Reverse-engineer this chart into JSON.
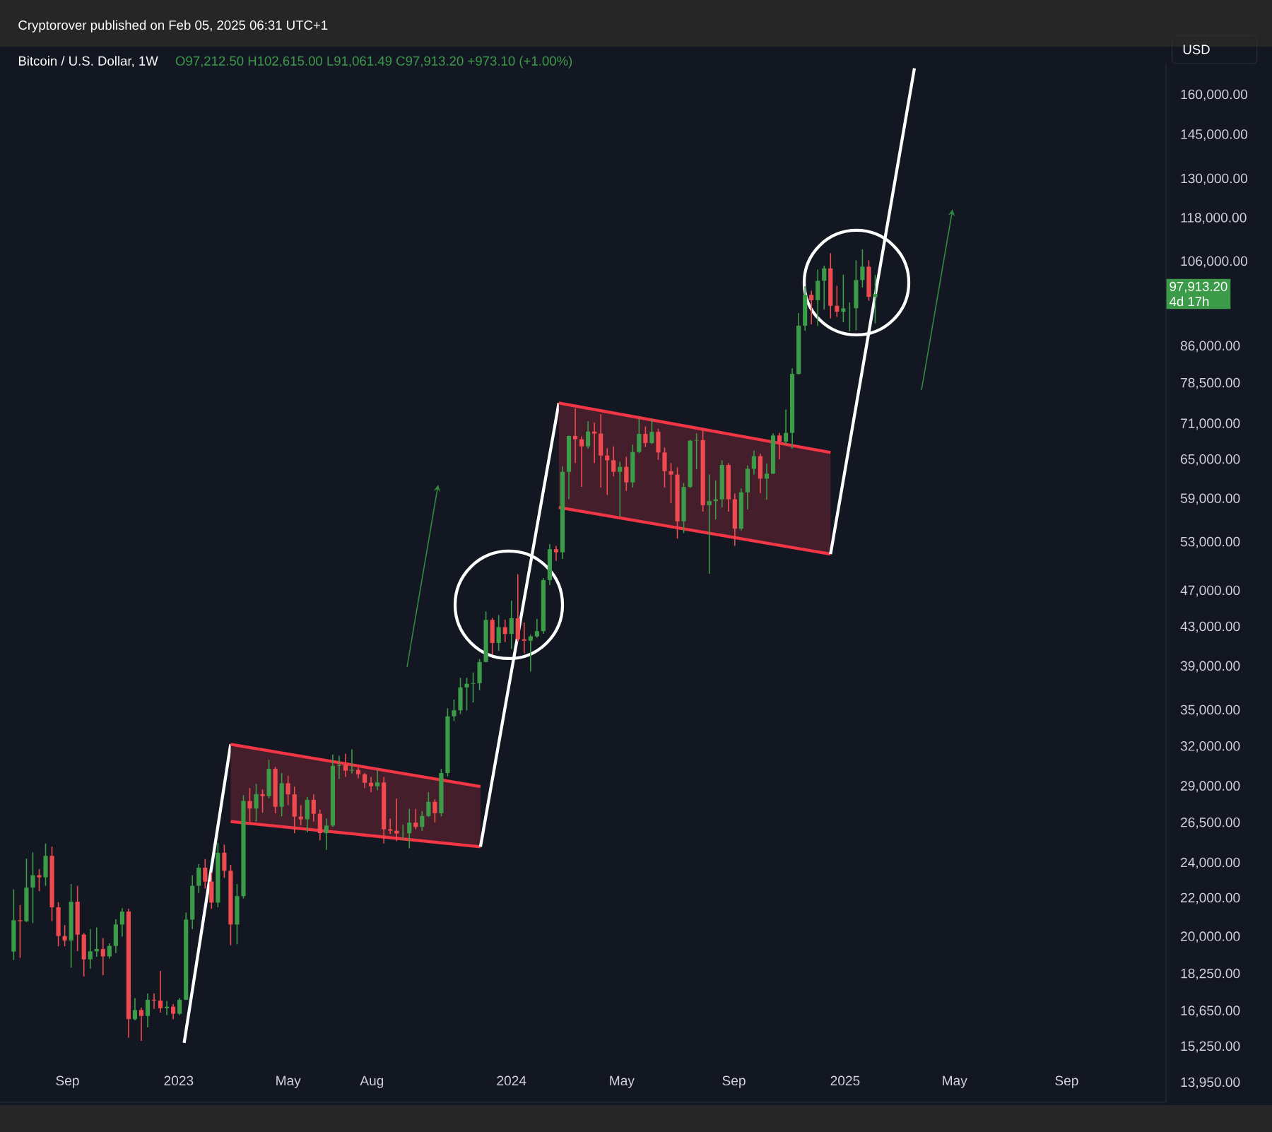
{
  "chart_data": {
    "type": "candlestick",
    "title": "Bitcoin / U.S. Dollar, 1W",
    "annotations": [
      "Cryptorover published on Feb 05, 2025 06:31 UTC+1",
      "O97,212.50 H102,615.00 L91,061.49 C97,913.20 +973.10 (+1.00%)",
      "USD",
      "97,913.20",
      "4d 17h"
    ],
    "x": [
      "2022-07-04",
      "2022-07-11",
      "2022-07-18",
      "2022-07-25",
      "2022-08-01",
      "2022-08-08",
      "2022-08-15",
      "2022-08-22",
      "2022-08-29",
      "2022-09-05",
      "2022-09-12",
      "2022-09-19",
      "2022-09-26",
      "2022-10-03",
      "2022-10-10",
      "2022-10-17",
      "2022-10-24",
      "2022-10-31",
      "2022-11-07",
      "2022-11-14",
      "2022-11-21",
      "2022-11-28",
      "2022-12-05",
      "2022-12-12",
      "2022-12-19",
      "2022-12-26",
      "2023-01-02",
      "2023-01-09",
      "2023-01-16",
      "2023-01-23",
      "2023-01-30",
      "2023-02-06",
      "2023-02-13",
      "2023-02-20",
      "2023-02-27",
      "2023-03-06",
      "2023-03-13",
      "2023-03-20",
      "2023-03-27",
      "2023-04-03",
      "2023-04-10",
      "2023-04-17",
      "2023-04-24",
      "2023-05-01",
      "2023-05-08",
      "2023-05-15",
      "2023-05-22",
      "2023-05-29",
      "2023-06-05",
      "2023-06-12",
      "2023-06-19",
      "2023-06-26",
      "2023-07-03",
      "2023-07-10",
      "2023-07-17",
      "2023-07-24",
      "2023-07-31",
      "2023-08-07",
      "2023-08-14",
      "2023-08-21",
      "2023-08-28",
      "2023-09-04",
      "2023-09-11",
      "2023-09-18",
      "2023-09-25",
      "2023-10-02",
      "2023-10-09",
      "2023-10-16",
      "2023-10-23",
      "2023-10-30",
      "2023-11-06",
      "2023-11-13",
      "2023-11-20",
      "2023-11-27",
      "2023-12-04",
      "2023-12-11",
      "2023-12-18",
      "2023-12-25",
      "2024-01-01",
      "2024-01-08",
      "2024-01-15",
      "2024-01-22",
      "2024-01-29",
      "2024-02-05",
      "2024-02-12",
      "2024-02-19",
      "2024-02-26",
      "2024-03-04",
      "2024-03-11",
      "2024-03-18",
      "2024-03-25",
      "2024-04-01",
      "2024-04-08",
      "2024-04-15",
      "2024-04-22",
      "2024-04-29",
      "2024-05-06",
      "2024-05-13",
      "2024-05-20",
      "2024-05-27",
      "2024-06-03",
      "2024-06-10",
      "2024-06-17",
      "2024-06-24",
      "2024-07-01",
      "2024-07-08",
      "2024-07-15",
      "2024-07-22",
      "2024-07-29",
      "2024-08-05",
      "2024-08-12",
      "2024-08-19",
      "2024-08-26",
      "2024-09-02",
      "2024-09-09",
      "2024-09-16",
      "2024-09-23",
      "2024-09-30",
      "2024-10-07",
      "2024-10-14",
      "2024-10-21",
      "2024-10-28",
      "2024-11-04",
      "2024-11-11",
      "2024-11-18",
      "2024-11-25",
      "2024-12-02",
      "2024-12-09",
      "2024-12-16",
      "2024-12-23",
      "2024-12-30",
      "2025-01-06",
      "2025-01-13",
      "2025-01-20",
      "2025-01-27",
      "2025-02-03"
    ],
    "ohlc": [
      [
        19300,
        22500,
        18900,
        20850
      ],
      [
        20850,
        21650,
        19000,
        20800
      ],
      [
        20800,
        24280,
        20750,
        22600
      ],
      [
        22600,
        24650,
        20700,
        23300
      ],
      [
        23300,
        23650,
        22400,
        23180
      ],
      [
        23180,
        25200,
        22700,
        24440
      ],
      [
        24440,
        25000,
        20800,
        21530
      ],
      [
        21530,
        21800,
        19550,
        20050
      ],
      [
        20050,
        20600,
        19550,
        19830
      ],
      [
        19830,
        22800,
        18550,
        21830
      ],
      [
        21830,
        22700,
        19320,
        20120
      ],
      [
        20120,
        20200,
        18150,
        18930
      ],
      [
        18930,
        20400,
        18500,
        19310
      ],
      [
        19310,
        20480,
        19050,
        19420
      ],
      [
        19420,
        19950,
        18200,
        19070
      ],
      [
        19070,
        19700,
        18960,
        19570
      ],
      [
        19570,
        20900,
        19230,
        20630
      ],
      [
        20630,
        21480,
        20030,
        21300
      ],
      [
        21300,
        21450,
        15600,
        16330
      ],
      [
        16330,
        17200,
        16280,
        16700
      ],
      [
        16700,
        16800,
        15480,
        16460
      ],
      [
        16460,
        17400,
        16000,
        17130
      ],
      [
        17130,
        17400,
        16750,
        17100
      ],
      [
        17100,
        18400,
        16600,
        16780
      ],
      [
        16780,
        17080,
        16500,
        16840
      ],
      [
        16840,
        16950,
        16330,
        16550
      ],
      [
        16550,
        17200,
        16500,
        17130
      ],
      [
        17130,
        21250,
        17120,
        20880
      ],
      [
        20880,
        23300,
        20400,
        22700
      ],
      [
        22700,
        23950,
        22300,
        23740
      ],
      [
        23740,
        24250,
        22550,
        22940
      ],
      [
        22940,
        23450,
        21450,
        21780
      ],
      [
        21780,
        25250,
        21530,
        24630
      ],
      [
        24630,
        25130,
        23150,
        23560
      ],
      [
        23560,
        23900,
        19600,
        20630
      ],
      [
        20630,
        22800,
        19650,
        22130
      ],
      [
        22130,
        28400,
        22000,
        27990
      ],
      [
        27990,
        28900,
        26600,
        27470
      ],
      [
        27470,
        29200,
        26600,
        28470
      ],
      [
        28470,
        28800,
        27200,
        28330
      ],
      [
        28330,
        31000,
        28170,
        30300
      ],
      [
        30300,
        30450,
        27150,
        27590
      ],
      [
        27590,
        30000,
        26950,
        29240
      ],
      [
        29240,
        29800,
        27700,
        28450
      ],
      [
        28450,
        29000,
        25850,
        26930
      ],
      [
        26930,
        27700,
        26350,
        26750
      ],
      [
        26750,
        28270,
        25900,
        28070
      ],
      [
        28070,
        28450,
        26600,
        27120
      ],
      [
        27120,
        27400,
        25400,
        25850
      ],
      [
        25850,
        26800,
        24800,
        26340
      ],
      [
        26340,
        31400,
        26250,
        30530
      ],
      [
        30530,
        31300,
        29550,
        30580
      ],
      [
        30580,
        31450,
        29700,
        30170
      ],
      [
        30170,
        31800,
        29950,
        30230
      ],
      [
        30230,
        30400,
        29600,
        29900
      ],
      [
        29900,
        30000,
        28900,
        29280
      ],
      [
        29280,
        29700,
        28600,
        29030
      ],
      [
        29030,
        30250,
        28750,
        29300
      ],
      [
        29300,
        29700,
        25200,
        26100
      ],
      [
        26100,
        26800,
        25800,
        26010
      ],
      [
        26010,
        28150,
        25350,
        25830
      ],
      [
        25830,
        26400,
        25400,
        25840
      ],
      [
        25840,
        27450,
        24900,
        26530
      ],
      [
        26530,
        27450,
        26100,
        26250
      ],
      [
        26250,
        27300,
        26000,
        26970
      ],
      [
        26970,
        28600,
        26900,
        27930
      ],
      [
        27930,
        28100,
        26550,
        27160
      ],
      [
        27160,
        30300,
        26950,
        29990
      ],
      [
        29990,
        35200,
        29750,
        34500
      ],
      [
        34500,
        35950,
        34100,
        35020
      ],
      [
        35020,
        37950,
        34700,
        37060
      ],
      [
        37060,
        37950,
        35000,
        37390
      ],
      [
        37390,
        38450,
        35700,
        37450
      ],
      [
        37450,
        39750,
        36800,
        39460
      ],
      [
        39460,
        44700,
        39420,
        43780
      ],
      [
        43780,
        44000,
        40200,
        41350
      ],
      [
        41350,
        44300,
        40550,
        43000
      ],
      [
        43000,
        43800,
        41450,
        42280
      ],
      [
        42280,
        45900,
        40750,
        43950
      ],
      [
        43950,
        49000,
        41500,
        41730
      ],
      [
        41730,
        43500,
        40300,
        41580
      ],
      [
        41580,
        42200,
        38550,
        42030
      ],
      [
        42030,
        43900,
        41900,
        42580
      ],
      [
        42580,
        48550,
        42300,
        48300
      ],
      [
        48300,
        52800,
        47700,
        52130
      ],
      [
        52130,
        52550,
        50650,
        51730
      ],
      [
        51730,
        64000,
        50900,
        63110
      ],
      [
        63110,
        69000,
        59000,
        68960
      ],
      [
        68960,
        73800,
        64500,
        68390
      ],
      [
        68390,
        68900,
        60800,
        67210
      ],
      [
        67210,
        71500,
        66800,
        69700
      ],
      [
        69700,
        71300,
        64500,
        69360
      ],
      [
        69360,
        72800,
        60700,
        65700
      ],
      [
        65700,
        66900,
        59600,
        64940
      ],
      [
        64940,
        67200,
        62400,
        63120
      ],
      [
        63120,
        64700,
        56500,
        63890
      ],
      [
        63890,
        65500,
        60200,
        61480
      ],
      [
        61480,
        67500,
        60700,
        66270
      ],
      [
        66270,
        71950,
        66100,
        69300
      ],
      [
        69300,
        70600,
        67100,
        67760
      ],
      [
        67760,
        71900,
        67600,
        69650
      ],
      [
        69650,
        70200,
        65000,
        66190
      ],
      [
        66190,
        67000,
        60700,
        63210
      ],
      [
        63210,
        64500,
        58400,
        62680
      ],
      [
        62680,
        63800,
        53500,
        55850
      ],
      [
        55850,
        61400,
        54250,
        60790
      ],
      [
        60790,
        68300,
        60650,
        68160
      ],
      [
        68160,
        69400,
        63500,
        68250
      ],
      [
        68250,
        70000,
        57200,
        58120
      ],
      [
        58120,
        62700,
        49050,
        58710
      ],
      [
        58710,
        61800,
        56100,
        58970
      ],
      [
        58970,
        64950,
        57800,
        64180
      ],
      [
        64180,
        64500,
        57200,
        58970
      ],
      [
        58970,
        59800,
        52550,
        54840
      ],
      [
        54840,
        60600,
        54600,
        59990
      ],
      [
        59990,
        64100,
        57500,
        63580
      ],
      [
        63580,
        66500,
        62700,
        65600
      ],
      [
        65600,
        66000,
        59900,
        62060
      ],
      [
        62060,
        64400,
        58900,
        62820
      ],
      [
        62820,
        69400,
        62800,
        69030
      ],
      [
        69030,
        69500,
        65100,
        68000
      ],
      [
        68000,
        73600,
        67500,
        69480
      ],
      [
        69480,
        81500,
        66800,
        80370
      ],
      [
        80370,
        93400,
        80200,
        90540
      ],
      [
        90540,
        99800,
        89400,
        97700
      ],
      [
        97700,
        98700,
        90800,
        96410
      ],
      [
        96410,
        104000,
        90500,
        101170
      ],
      [
        101170,
        105000,
        94200,
        104300
      ],
      [
        104300,
        108300,
        92200,
        95100
      ],
      [
        95100,
        99900,
        92500,
        93710
      ],
      [
        93710,
        102700,
        91300,
        94490
      ],
      [
        94490,
        95900,
        89300,
        94520
      ],
      [
        94520,
        106400,
        89500,
        101330
      ],
      [
        101330,
        109300,
        99500,
        104740
      ],
      [
        104740,
        106400,
        96300,
        97212.5
      ],
      [
        97212.5,
        102615,
        91061.49,
        97913.2
      ]
    ],
    "colors": [
      "#3c9b48",
      "#ef4a4f",
      "#3c9b48",
      "#3c9b48",
      "#ef4a4f",
      "#3c9b48",
      "#ef4a4f",
      "#ef4a4f",
      "#ef4a4f",
      "#3c9b48",
      "#ef4a4f",
      "#ef4a4f",
      "#3c9b48",
      "#3c9b48",
      "#ef4a4f",
      "#3c9b48",
      "#3c9b48",
      "#3c9b48",
      "#ef4a4f",
      "#3c9b48",
      "#ef4a4f",
      "#3c9b48",
      "#ef4a4f",
      "#ef4a4f",
      "#3c9b48",
      "#ef4a4f",
      "#3c9b48",
      "#3c9b48",
      "#3c9b48",
      "#3c9b48",
      "#ef4a4f",
      "#ef4a4f",
      "#3c9b48",
      "#ef4a4f",
      "#ef4a4f",
      "#3c9b48",
      "#3c9b48",
      "#ef4a4f",
      "#3c9b48",
      "#ef4a4f",
      "#3c9b48",
      "#ef4a4f",
      "#3c9b48",
      "#ef4a4f",
      "#ef4a4f",
      "#ef4a4f",
      "#3c9b48",
      "#ef4a4f",
      "#ef4a4f",
      "#3c9b48",
      "#3c9b48",
      "#3c9b48",
      "#ef4a4f",
      "#3c9b48",
      "#ef4a4f",
      "#ef4a4f",
      "#ef4a4f",
      "#3c9b48",
      "#ef4a4f",
      "#ef4a4f",
      "#ef4a4f",
      "#3c9b48",
      "#3c9b48",
      "#ef4a4f",
      "#3c9b48",
      "#3c9b48",
      "#ef4a4f",
      "#3c9b48",
      "#3c9b48",
      "#3c9b48",
      "#3c9b48",
      "#3c9b48",
      "#3c9b48",
      "#3c9b48",
      "#3c9b48",
      "#ef4a4f",
      "#3c9b48",
      "#ef4a4f",
      "#3c9b48",
      "#ef4a4f",
      "#ef4a4f",
      "#3c9b48",
      "#3c9b48",
      "#3c9b48",
      "#3c9b48",
      "#ef4a4f",
      "#3c9b48",
      "#3c9b48",
      "#ef4a4f",
      "#ef4a4f",
      "#3c9b48",
      "#ef4a4f",
      "#ef4a4f",
      "#ef4a4f",
      "#ef4a4f",
      "#3c9b48",
      "#ef4a4f",
      "#3c9b48",
      "#3c9b48",
      "#ef4a4f",
      "#3c9b48",
      "#ef4a4f",
      "#ef4a4f",
      "#ef4a4f",
      "#ef4a4f",
      "#3c9b48",
      "#3c9b48",
      "#3c9b48",
      "#ef4a4f",
      "#3c9b48",
      "#3c9b48",
      "#3c9b48",
      "#ef4a4f",
      "#ef4a4f",
      "#3c9b48",
      "#3c9b48",
      "#3c9b48",
      "#ef4a4f",
      "#3c9b48",
      "#3c9b48",
      "#ef4a4f",
      "#3c9b48",
      "#3c9b48",
      "#3c9b48",
      "#3c9b48",
      "#ef4a4f",
      "#3c9b48",
      "#3c9b48",
      "#ef4a4f",
      "#ef4a4f",
      "#3c9b48",
      "#3c9b48",
      "#3c9b48",
      "#3c9b48",
      "#ef4a4f",
      "#3c9b48"
    ],
    "series": [
      {
        "type": "line",
        "color": "#ffffff",
        "x": [
          "2023-01-07",
          "2023-02-27"
        ],
        "values": [
          15400,
          32200
        ]
      },
      {
        "type": "line",
        "color": "#f23645",
        "x": [
          "2023-02-27",
          "2023-11-28"
        ],
        "values": [
          32200,
          29000
        ],
        "upper": [
          32200,
          29000
        ],
        "lower": [
          26600,
          25000
        ]
      },
      {
        "type": "line",
        "color": "#f23645",
        "x": [
          "2023-02-27",
          "2023-11-28"
        ],
        "values": [
          26600,
          25000
        ]
      },
      {
        "type": "line",
        "color": "#ffffff",
        "x": [
          "2023-11-28",
          "2024-02-22"
        ],
        "values": [
          25000,
          74800
        ]
      },
      {
        "type": "line",
        "color": "#f23645",
        "x": [
          "2024-02-22",
          "2024-12-16"
        ],
        "values": [
          74800,
          66200
        ],
        "upper": [
          74800,
          66200
        ],
        "lower": [
          57800,
          51500
        ]
      },
      {
        "type": "line",
        "color": "#f23645",
        "x": [
          "2024-02-22",
          "2024-12-16"
        ],
        "values": [
          57800,
          51500
        ]
      },
      {
        "type": "line",
        "color": "#ffffff",
        "x": [
          "2024-12-16",
          "2025-03-18"
        ],
        "values": [
          51500,
          171000
        ]
      }
    ],
    "log": true,
    "xlim": [
      "2022-06-19",
      "2025-12-19"
    ],
    "xticks": [
      {
        "value": "2022-09-01",
        "label": "Sep"
      },
      {
        "value": "2023-01-01",
        "label": "2023"
      },
      {
        "value": "2023-05-01",
        "label": "May"
      },
      {
        "value": "2023-08-01",
        "label": "Aug"
      },
      {
        "value": "2024-01-01",
        "label": "2024"
      },
      {
        "value": "2024-05-01",
        "label": "May"
      },
      {
        "value": "2024-09-01",
        "label": "Sep"
      },
      {
        "value": "2025-01-01",
        "label": "2025"
      },
      {
        "value": "2025-05-01",
        "label": "May"
      },
      {
        "value": "2025-09-01",
        "label": "Sep"
      }
    ],
    "ylim": [
      13300,
      173000
    ],
    "yticks": [
      {
        "value": 13950,
        "label": "13,950.00"
      },
      {
        "value": 15250,
        "label": "15,250.00"
      },
      {
        "value": 16650,
        "label": "16,650.00"
      },
      {
        "value": 18250,
        "label": "18,250.00"
      },
      {
        "value": 20000,
        "label": "20,000.00"
      },
      {
        "value": 22000,
        "label": "22,000.00"
      },
      {
        "value": 24000,
        "label": "24,000.00"
      },
      {
        "value": 26500,
        "label": "26,500.00"
      },
      {
        "value": 29000,
        "label": "29,000.00"
      },
      {
        "value": 32000,
        "label": "32,000.00"
      },
      {
        "value": 35000,
        "label": "35,000.00"
      },
      {
        "value": 39000,
        "label": "39,000.00"
      },
      {
        "value": 43000,
        "label": "43,000.00"
      },
      {
        "value": 47000,
        "label": "47,000.00"
      },
      {
        "value": 53000,
        "label": "53,000.00"
      },
      {
        "value": 59000,
        "label": "59,000.00"
      },
      {
        "value": 65000,
        "label": "65,000.00"
      },
      {
        "value": 71000,
        "label": "71,000.00"
      },
      {
        "value": 78500,
        "label": "78,500.00"
      },
      {
        "value": 86000,
        "label": "86,000.00"
      },
      {
        "value": 106000,
        "label": "106,000.00"
      },
      {
        "value": 118000,
        "label": "118,000.00"
      },
      {
        "value": 130000,
        "label": "130,000.00"
      },
      {
        "value": 145000,
        "label": "145,000.00"
      },
      {
        "value": 160000,
        "label": "160,000.00"
      }
    ]
  }
}
